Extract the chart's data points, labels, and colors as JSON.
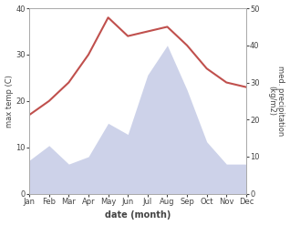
{
  "months": [
    "Jan",
    "Feb",
    "Mar",
    "Apr",
    "May",
    "Jun",
    "Jul",
    "Aug",
    "Sep",
    "Oct",
    "Nov",
    "Dec"
  ],
  "temperature": [
    17,
    20,
    24,
    30,
    38,
    34,
    35,
    36,
    32,
    27,
    24,
    23
  ],
  "precipitation": [
    9,
    13,
    8,
    10,
    19,
    16,
    32,
    40,
    28,
    14,
    8,
    8
  ],
  "temp_color": "#c0504d",
  "precip_fill_color": "#b8c0e0",
  "ylabel_left": "max temp (C)",
  "ylabel_right": "med. precipitation\n(kg/m2)",
  "xlabel": "date (month)",
  "ylim_left": [
    0,
    40
  ],
  "ylim_right": [
    0,
    50
  ],
  "background_color": "#ffffff",
  "spine_color": "#aaaaaa",
  "tick_color": "#444444",
  "label_color": "#444444"
}
